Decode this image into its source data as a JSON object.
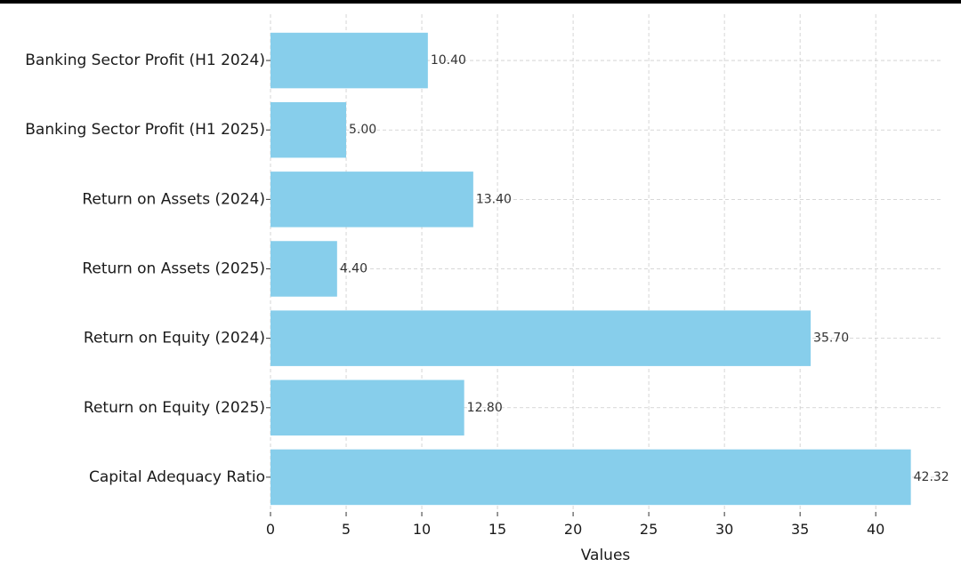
{
  "chart_data": {
    "type": "bar",
    "orientation": "horizontal",
    "categories": [
      "Banking Sector Profit (H1 2024)",
      "Banking Sector Profit (H1 2025)",
      "Return on Assets (2024)",
      "Return on Assets (2025)",
      "Return on Equity (2024)",
      "Return on Equity (2025)",
      "Capital Adequacy Ratio"
    ],
    "values": [
      10.4,
      5.0,
      13.4,
      4.4,
      35.7,
      12.8,
      42.32
    ],
    "value_labels": [
      "10.40",
      "5.00",
      "13.40",
      "4.40",
      "35.70",
      "12.80",
      "42.32"
    ],
    "title": "",
    "xlabel": "Values",
    "ylabel": "",
    "xlim": [
      0,
      44.4
    ],
    "xticks": [
      0,
      5,
      10,
      15,
      20,
      25,
      30,
      35,
      40
    ],
    "grid": true,
    "bar_color": "#87ceeb",
    "grid_color": "#cccccc"
  }
}
